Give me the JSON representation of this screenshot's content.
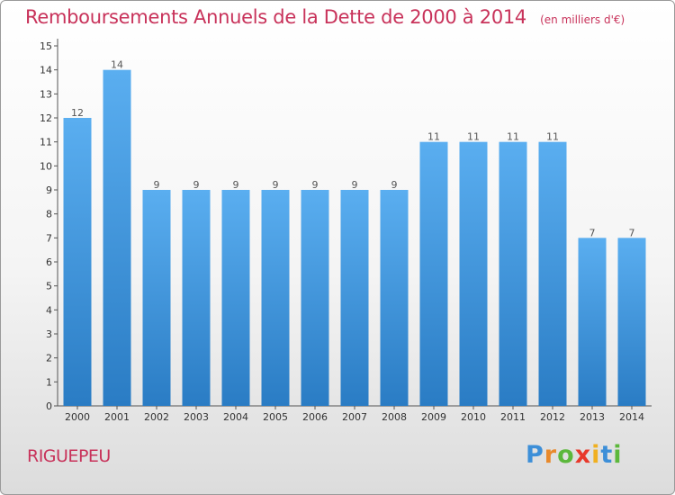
{
  "chart_data": {
    "type": "bar",
    "title": "Remboursements Annuels de la Dette de 2000 à 2014",
    "unit": "(en milliers d'€)",
    "categories": [
      "2000",
      "2001",
      "2002",
      "2003",
      "2004",
      "2005",
      "2006",
      "2007",
      "2008",
      "2009",
      "2010",
      "2011",
      "2012",
      "2013",
      "2014"
    ],
    "values": [
      12,
      14,
      9,
      9,
      9,
      9,
      9,
      9,
      9,
      11,
      11,
      11,
      11,
      7,
      7
    ],
    "ylim": [
      0,
      15
    ],
    "yticks": [
      0,
      1,
      2,
      3,
      4,
      5,
      6,
      7,
      8,
      9,
      10,
      11,
      12,
      13,
      14,
      15
    ],
    "bar_color_top": "#5aaef0",
    "bar_color_bottom": "#2a7cc4"
  },
  "commune": "RIGUEPEU",
  "logo": {
    "letters": [
      "P",
      "r",
      "o",
      "x",
      "i",
      "t",
      "i"
    ],
    "colors": [
      "#3d8fd8",
      "#e8892b",
      "#5cb83c",
      "#e8392b",
      "#f0b020",
      "#3d8fd8",
      "#5cb83c"
    ]
  }
}
